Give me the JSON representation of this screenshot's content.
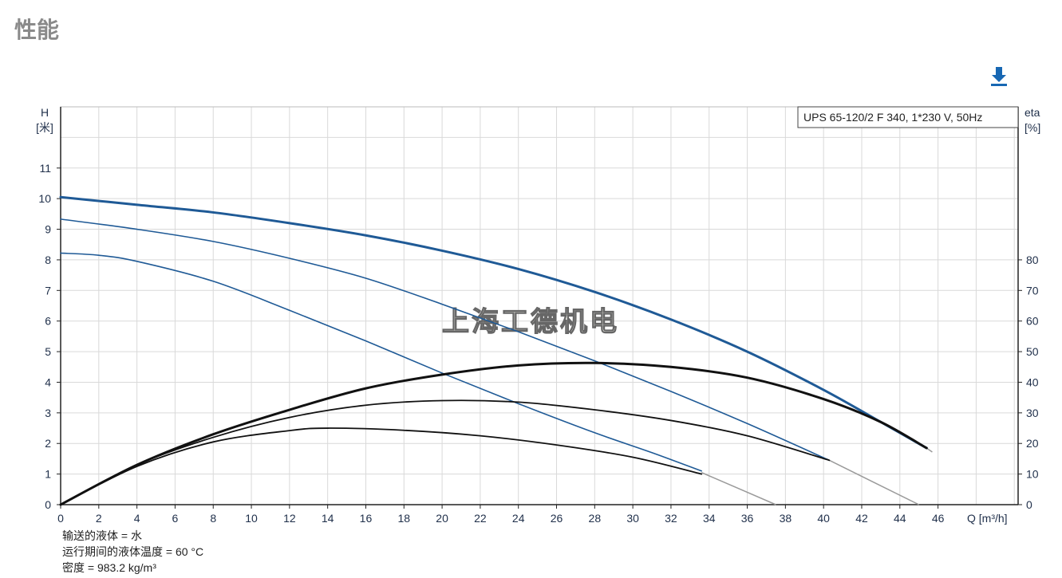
{
  "page": {
    "title": "性能",
    "download_icon": "download-icon"
  },
  "chart_data": {
    "type": "line",
    "legend_box": "UPS 65-120/2 F 340, 1*230 V, 50Hz",
    "legend_placement": "top-right",
    "watermark": "上海工德机电",
    "y_left_label": [
      "H",
      "[米]"
    ],
    "y_right_label": [
      "eta",
      "[%]"
    ],
    "x_label": "Q [m³/h]",
    "xlim": [
      0,
      50.2
    ],
    "ylim_left": [
      0,
      13
    ],
    "ylim_right": [
      0,
      130
    ],
    "x_ticks": [
      0,
      2,
      4,
      6,
      8,
      10,
      12,
      14,
      16,
      18,
      20,
      22,
      24,
      26,
      28,
      30,
      32,
      34,
      36,
      38,
      40,
      42,
      44,
      46
    ],
    "y_left_ticks": [
      0,
      1,
      2,
      3,
      4,
      5,
      6,
      7,
      8,
      9,
      10,
      11
    ],
    "y_right_ticks": [
      0,
      10,
      20,
      30,
      40,
      50,
      60,
      70,
      80
    ],
    "grid": true,
    "colors": {
      "head": "#1f5a96",
      "eta": "#111111",
      "extension": "#9a9a9a",
      "grid": "#d9d9d9",
      "axis_text": "#1f2f4a"
    },
    "series": [
      {
        "axis": "left",
        "kind": "head",
        "width": 3,
        "points": [
          [
            0,
            10.05
          ],
          [
            4,
            9.8
          ],
          [
            8,
            9.55
          ],
          [
            12,
            9.2
          ],
          [
            16,
            8.8
          ],
          [
            20,
            8.3
          ],
          [
            24,
            7.7
          ],
          [
            28,
            6.95
          ],
          [
            32,
            6.05
          ],
          [
            36,
            5.0
          ],
          [
            40,
            3.75
          ],
          [
            43,
            2.7
          ],
          [
            45.4,
            1.85
          ]
        ],
        "extension": [
          [
            45.4,
            1.85
          ],
          [
            45.7,
            1.72
          ]
        ]
      },
      {
        "axis": "left",
        "kind": "head",
        "width": 1.6,
        "points": [
          [
            0,
            9.33
          ],
          [
            4,
            9.0
          ],
          [
            8,
            8.6
          ],
          [
            12,
            8.05
          ],
          [
            16,
            7.4
          ],
          [
            20,
            6.55
          ],
          [
            24,
            5.65
          ],
          [
            28,
            4.7
          ],
          [
            32,
            3.7
          ],
          [
            36,
            2.65
          ],
          [
            40.3,
            1.45
          ]
        ],
        "extension": [
          [
            40.3,
            1.45
          ],
          [
            45,
            0
          ]
        ]
      },
      {
        "axis": "left",
        "kind": "head",
        "width": 1.6,
        "points": [
          [
            0,
            8.22
          ],
          [
            2,
            8.15
          ],
          [
            4,
            7.95
          ],
          [
            8,
            7.3
          ],
          [
            12,
            6.35
          ],
          [
            16,
            5.35
          ],
          [
            20,
            4.3
          ],
          [
            24,
            3.3
          ],
          [
            28,
            2.35
          ],
          [
            31,
            1.7
          ],
          [
            33.6,
            1.1
          ]
        ],
        "extension": [
          [
            33.6,
            1.05
          ],
          [
            37.5,
            0
          ]
        ]
      },
      {
        "axis": "right",
        "kind": "eta",
        "width": 3,
        "points": [
          [
            0,
            0
          ],
          [
            4,
            13
          ],
          [
            8,
            23
          ],
          [
            12,
            31
          ],
          [
            16,
            38
          ],
          [
            20,
            42.5
          ],
          [
            24,
            45.5
          ],
          [
            28,
            46.3
          ],
          [
            32,
            45
          ],
          [
            36,
            41.5
          ],
          [
            40,
            34.5
          ],
          [
            43,
            27
          ],
          [
            45.4,
            18.5
          ]
        ]
      },
      {
        "axis": "right",
        "kind": "eta",
        "width": 1.8,
        "points": [
          [
            0,
            0
          ],
          [
            4,
            13
          ],
          [
            8,
            22
          ],
          [
            12,
            28.5
          ],
          [
            16,
            32.5
          ],
          [
            20,
            34
          ],
          [
            24,
            33.5
          ],
          [
            28,
            31
          ],
          [
            32,
            27.5
          ],
          [
            36,
            22.5
          ],
          [
            40.3,
            14.5
          ]
        ]
      },
      {
        "axis": "right",
        "kind": "eta",
        "width": 1.8,
        "points": [
          [
            0,
            0
          ],
          [
            4,
            12.5
          ],
          [
            8,
            20.5
          ],
          [
            12,
            24.2
          ],
          [
            14,
            25
          ],
          [
            18,
            24.3
          ],
          [
            22,
            22.5
          ],
          [
            26,
            19.5
          ],
          [
            30,
            15.5
          ],
          [
            33.6,
            10
          ]
        ]
      }
    ]
  },
  "notes": [
    "输送的液体 = 水",
    "运行期间的液体温度 = 60 °C",
    "密度 = 983.2 kg/m³"
  ]
}
